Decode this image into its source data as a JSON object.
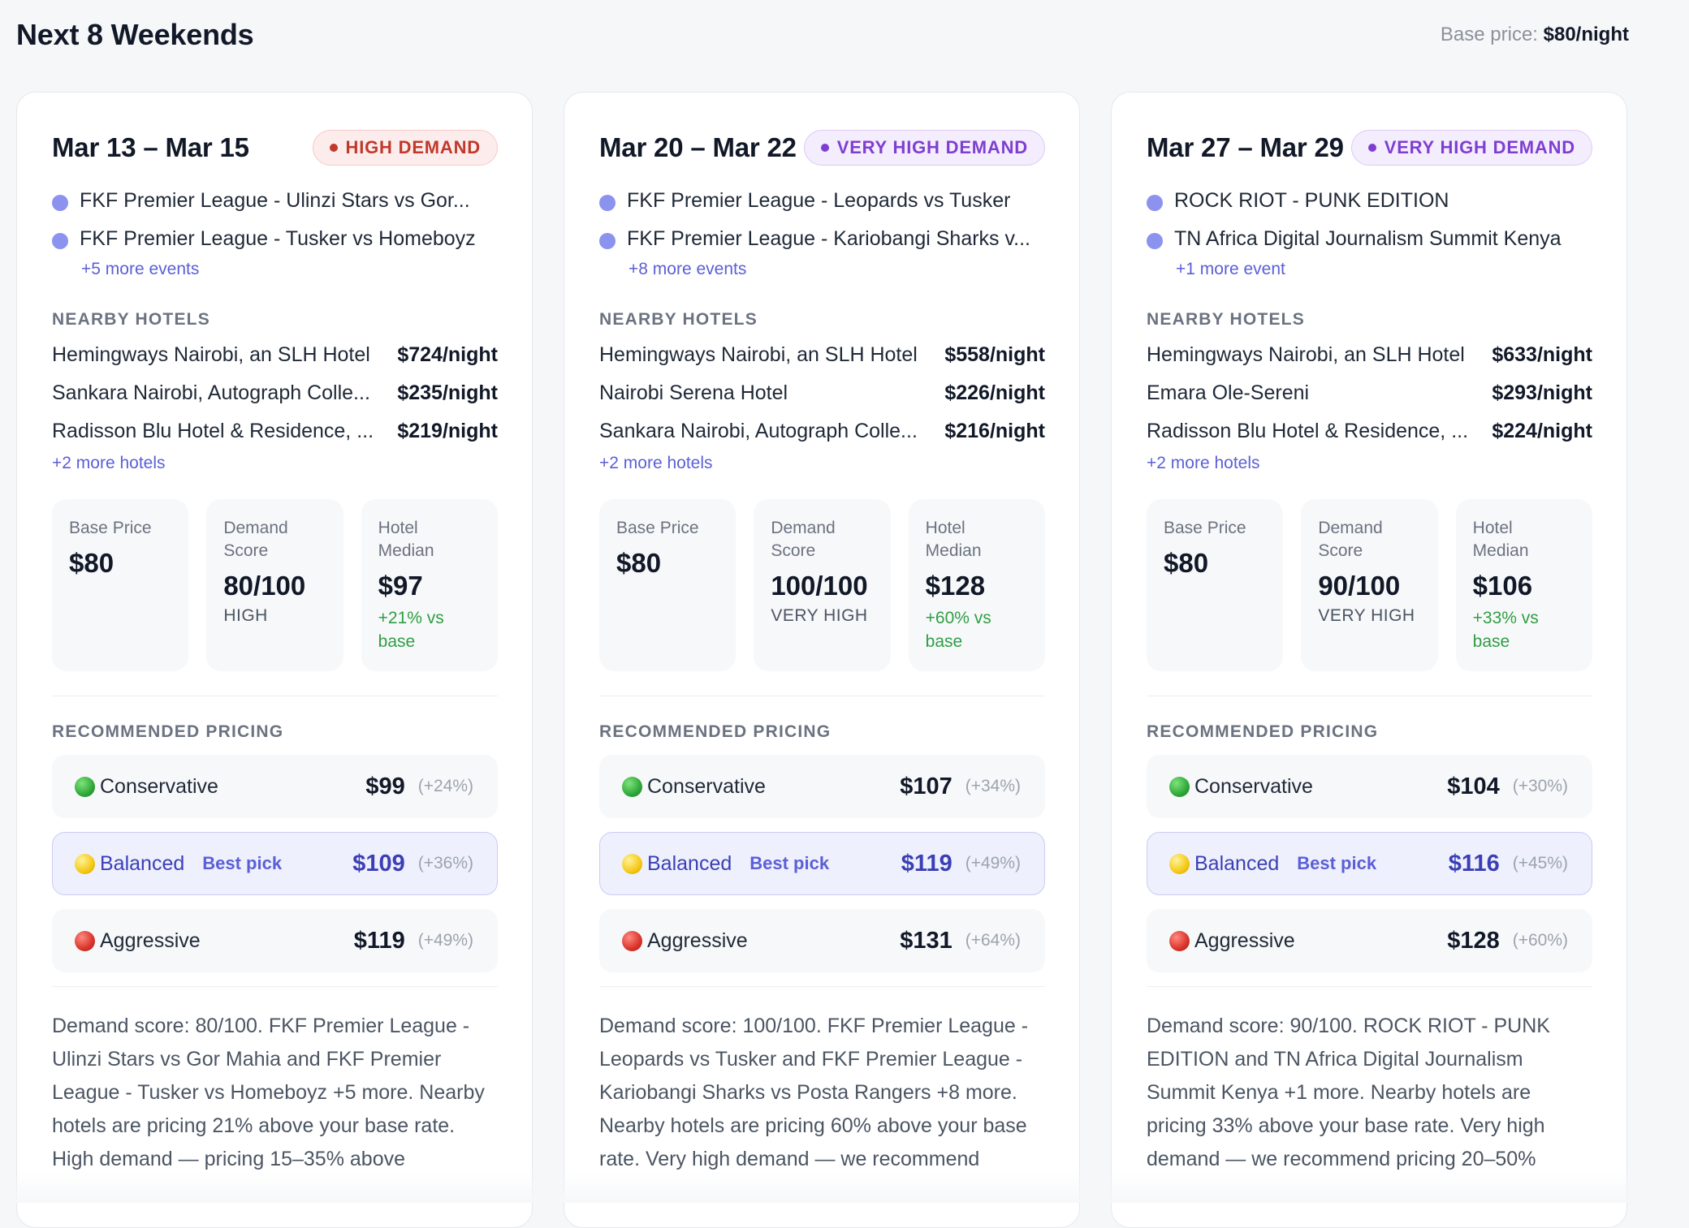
{
  "page": {
    "title": "Next 8 Weekends",
    "base_price_label": "Base price:",
    "base_price_value": "$80/night"
  },
  "labels": {
    "nearby_hotels": "NEARBY HOTELS",
    "recommended_pricing": "RECOMMENDED PRICING",
    "base_price": "Base Price",
    "demand_score": "Demand Score",
    "hotel_median": "Hotel Median",
    "best_pick": "Best pick",
    "conservative": "Conservative",
    "balanced": "Balanced",
    "aggressive": "Aggressive"
  },
  "colors": {
    "high_badge_bg": "#fdecec",
    "high_badge_border": "#f8c9c9",
    "high_badge_text": "#c0392b",
    "very_high_badge_bg": "#f4edfd",
    "very_high_badge_border": "#dcc9f6",
    "very_high_badge_text": "#7e3fd1",
    "accent": "#5b5fd6",
    "positive": "#2f9e44"
  },
  "weekends": [
    {
      "date_range": "Mar 13 – Mar 15",
      "demand_badge": "HIGH DEMAND",
      "events": [
        "FKF Premier League - Ulinzi Stars vs Gor...",
        "FKF Premier League - Tusker vs Homeboyz"
      ],
      "more_events": "+5 more events",
      "hotels": [
        {
          "name": "Hemingways Nairobi, an SLH Hotel",
          "price": "$724/night"
        },
        {
          "name": "Sankara Nairobi, Autograph Colle...",
          "price": "$235/night"
        },
        {
          "name": "Radisson Blu Hotel & Residence, ...",
          "price": "$219/night"
        }
      ],
      "more_hotels": "+2 more hotels",
      "base_price": "$80",
      "demand_score": "80/100",
      "demand_level": "HIGH",
      "hotel_median": "$97",
      "median_delta": "+21% vs base",
      "pricing": {
        "conservative": {
          "price": "$99",
          "pct": "(+24%)"
        },
        "balanced": {
          "price": "$109",
          "pct": "(+36%)"
        },
        "aggressive": {
          "price": "$119",
          "pct": "(+49%)"
        }
      },
      "summary": "Demand score: 80/100. FKF Premier League - Ulinzi Stars vs Gor Mahia and FKF Premier League - Tusker vs Homeboyz +5 more. Nearby hotels are pricing 21% above your base rate. High demand — pricing 15–35% above"
    },
    {
      "date_range": "Mar 20 – Mar 22",
      "demand_badge": "VERY HIGH DEMAND",
      "events": [
        "FKF Premier League - Leopards vs Tusker",
        "FKF Premier League - Kariobangi Sharks v..."
      ],
      "more_events": "+8 more events",
      "hotels": [
        {
          "name": "Hemingways Nairobi, an SLH Hotel",
          "price": "$558/night"
        },
        {
          "name": "Nairobi Serena Hotel",
          "price": "$226/night"
        },
        {
          "name": "Sankara Nairobi, Autograph Colle...",
          "price": "$216/night"
        }
      ],
      "more_hotels": "+2 more hotels",
      "base_price": "$80",
      "demand_score": "100/100",
      "demand_level": "VERY HIGH",
      "hotel_median": "$128",
      "median_delta": "+60% vs base",
      "pricing": {
        "conservative": {
          "price": "$107",
          "pct": "(+34%)"
        },
        "balanced": {
          "price": "$119",
          "pct": "(+49%)"
        },
        "aggressive": {
          "price": "$131",
          "pct": "(+64%)"
        }
      },
      "summary": "Demand score: 100/100. FKF Premier League - Leopards vs Tusker and FKF Premier League - Kariobangi Sharks vs Posta Rangers +8 more. Nearby hotels are pricing 60% above your base rate. Very high demand — we recommend"
    },
    {
      "date_range": "Mar 27 – Mar 29",
      "demand_badge": "VERY HIGH DEMAND",
      "events": [
        "ROCK RIOT - PUNK EDITION",
        "TN Africa Digital Journalism Summit Kenya"
      ],
      "more_events": "+1 more event",
      "hotels": [
        {
          "name": "Hemingways Nairobi, an SLH Hotel",
          "price": "$633/night"
        },
        {
          "name": "Emara Ole-Sereni",
          "price": "$293/night"
        },
        {
          "name": "Radisson Blu Hotel & Residence, ...",
          "price": "$224/night"
        }
      ],
      "more_hotels": "+2 more hotels",
      "base_price": "$80",
      "demand_score": "90/100",
      "demand_level": "VERY HIGH",
      "hotel_median": "$106",
      "median_delta": "+33% vs base",
      "pricing": {
        "conservative": {
          "price": "$104",
          "pct": "(+30%)"
        },
        "balanced": {
          "price": "$116",
          "pct": "(+45%)"
        },
        "aggressive": {
          "price": "$128",
          "pct": "(+60%)"
        }
      },
      "summary": "Demand score: 90/100. ROCK RIOT - PUNK EDITION and TN Africa Digital Journalism Summit Kenya +1 more. Nearby hotels are pricing 33% above your base rate. Very high demand — we recommend pricing 20–50%"
    }
  ]
}
